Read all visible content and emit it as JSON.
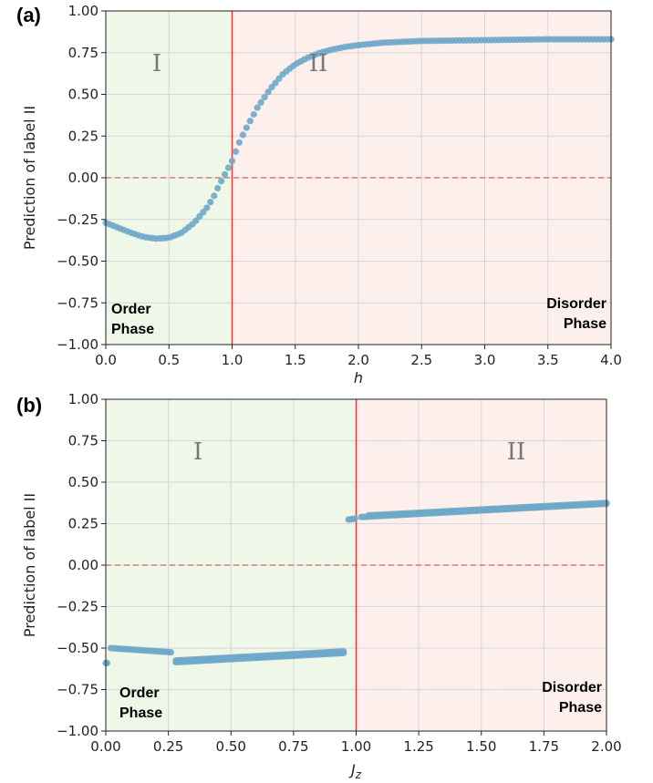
{
  "chart_data": [
    {
      "type": "scatter",
      "panel_label": "(a)",
      "xlabel": "h",
      "ylabel": "Prediction of label II",
      "xlim": [
        0,
        4
      ],
      "ylim": [
        -1,
        1
      ],
      "xticks": [
        "0.0",
        "0.5",
        "1.0",
        "1.5",
        "2.0",
        "2.5",
        "3.0",
        "3.5",
        "4.0"
      ],
      "yticks": [
        "−1.00",
        "−0.75",
        "−0.50",
        "−0.25",
        "0.00",
        "0.25",
        "0.50",
        "0.75",
        "1.00"
      ],
      "grid": true,
      "critical_x": 1.0,
      "threshold_y": 0.0,
      "regions": [
        {
          "label": "I",
          "from": 0,
          "to": 1.0,
          "color": "#eef7e8"
        },
        {
          "label": "II",
          "from": 1.0,
          "to": 4.0,
          "color": "#fdf0ec"
        }
      ],
      "annotations": {
        "order_line1": "Order",
        "order_line2": "Phase",
        "disorder_line1": "Disorder",
        "disorder_line2": "Phase"
      },
      "marker_color": "#6fa8c9",
      "key_points": {
        "x": [
          0.0,
          0.1,
          0.2,
          0.3,
          0.4,
          0.5,
          0.6,
          0.7,
          0.8,
          0.85,
          0.9,
          0.95,
          1.0,
          1.05,
          1.1,
          1.2,
          1.3,
          1.4,
          1.5,
          1.6,
          1.7,
          1.8,
          1.9,
          2.0,
          2.2,
          2.5,
          3.0,
          3.5,
          4.0
        ],
        "y": [
          -0.27,
          -0.3,
          -0.33,
          -0.355,
          -0.365,
          -0.36,
          -0.33,
          -0.27,
          -0.18,
          -0.12,
          -0.04,
          0.03,
          0.1,
          0.2,
          0.28,
          0.42,
          0.53,
          0.62,
          0.68,
          0.72,
          0.75,
          0.77,
          0.785,
          0.795,
          0.81,
          0.82,
          0.825,
          0.83,
          0.83
        ]
      }
    },
    {
      "type": "scatter",
      "panel_label": "(b)",
      "xlabel": "Jz",
      "ylabel": "Prediction of label II",
      "xlim": [
        0,
        2
      ],
      "ylim": [
        -1,
        1
      ],
      "xticks": [
        "0.00",
        "0.25",
        "0.50",
        "0.75",
        "1.00",
        "1.25",
        "1.50",
        "1.75",
        "2.00"
      ],
      "yticks": [
        "−1.00",
        "−0.75",
        "−0.50",
        "−0.25",
        "0.00",
        "0.25",
        "0.50",
        "0.75",
        "1.00"
      ],
      "grid": true,
      "critical_x": 1.0,
      "threshold_y": 0.0,
      "regions": [
        {
          "label": "I",
          "from": 0,
          "to": 1.0,
          "color": "#eef7e8"
        },
        {
          "label": "II",
          "from": 1.0,
          "to": 2.0,
          "color": "#fdf0ec"
        }
      ],
      "annotations": {
        "order_line1": "Order",
        "order_line2": "Phase",
        "disorder_line1": "Disorder",
        "disorder_line2": "Phase"
      },
      "marker_color": "#6fa8c9",
      "segments": [
        {
          "x": [
            0.0,
            0.005
          ],
          "y": [
            -0.59,
            -0.59
          ]
        },
        {
          "x": [
            0.02,
            0.26
          ],
          "y": [
            -0.5,
            -0.525
          ]
        },
        {
          "x": [
            0.28,
            0.95
          ],
          "y": [
            -0.585,
            -0.53
          ]
        },
        {
          "x": [
            0.28,
            0.95
          ],
          "y": [
            -0.575,
            -0.52
          ]
        },
        {
          "x": [
            0.97,
            0.995
          ],
          "y": [
            0.275,
            0.28
          ]
        },
        {
          "x": [
            1.02,
            2.0
          ],
          "y": [
            0.29,
            0.37
          ]
        },
        {
          "x": [
            1.05,
            2.0
          ],
          "y": [
            0.3,
            0.375
          ]
        }
      ]
    }
  ]
}
